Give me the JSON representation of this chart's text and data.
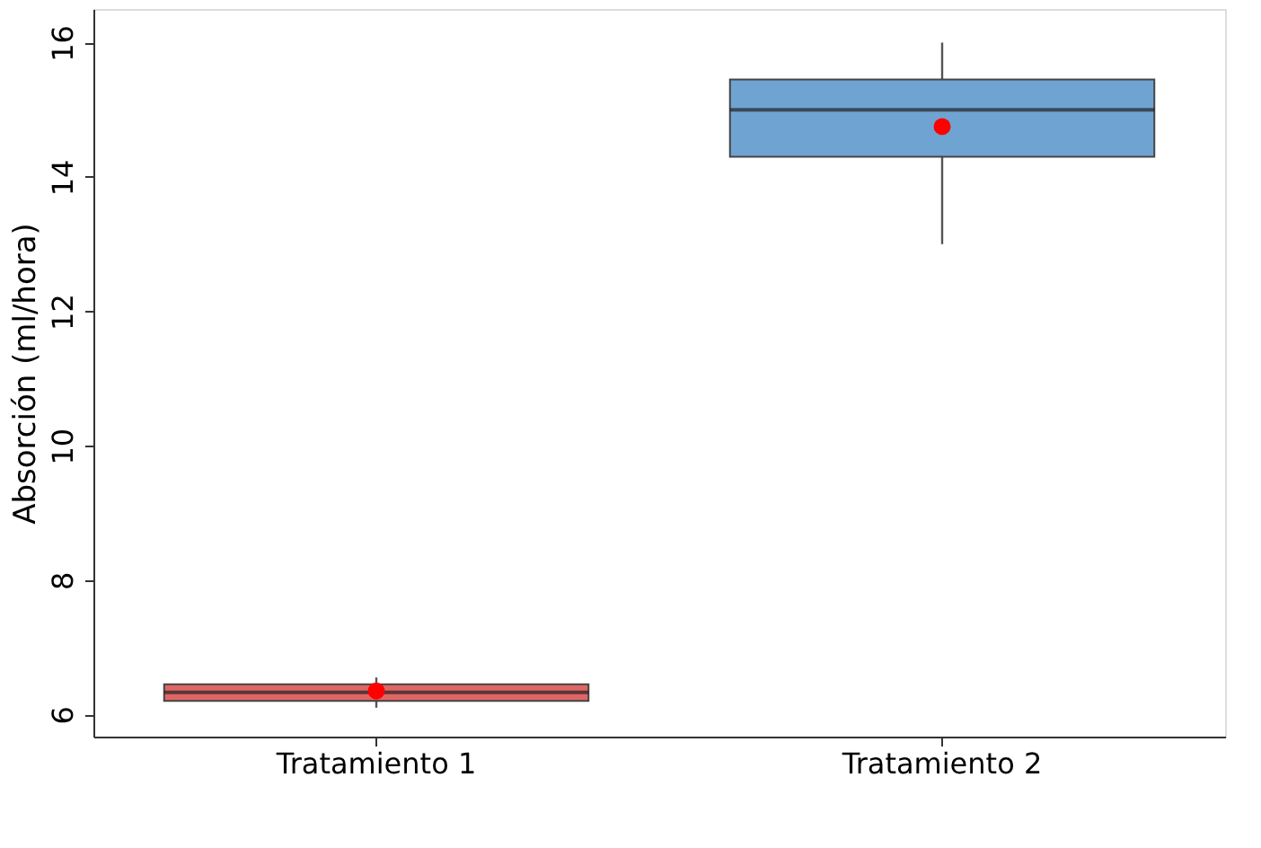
{
  "chart_data": {
    "type": "box",
    "ylabel": "Absorción (ml/hora)",
    "categories": [
      "Tratamiento 1",
      "Tratamiento 2"
    ],
    "colors": [
      "#e06666",
      "#6fa3d2"
    ],
    "boxes": [
      {
        "low": 6.1,
        "q1": 6.2,
        "median": 6.33,
        "q3": 6.45,
        "high": 6.55,
        "mean": 6.35
      },
      {
        "low": 13.0,
        "q1": 14.3,
        "median": 15.0,
        "q3": 15.45,
        "high": 16.0,
        "mean": 14.75
      }
    ],
    "ylim": [
      5.67,
      16.5
    ],
    "yticks": [
      6,
      8,
      10,
      12,
      14,
      16
    ],
    "grid": false
  }
}
